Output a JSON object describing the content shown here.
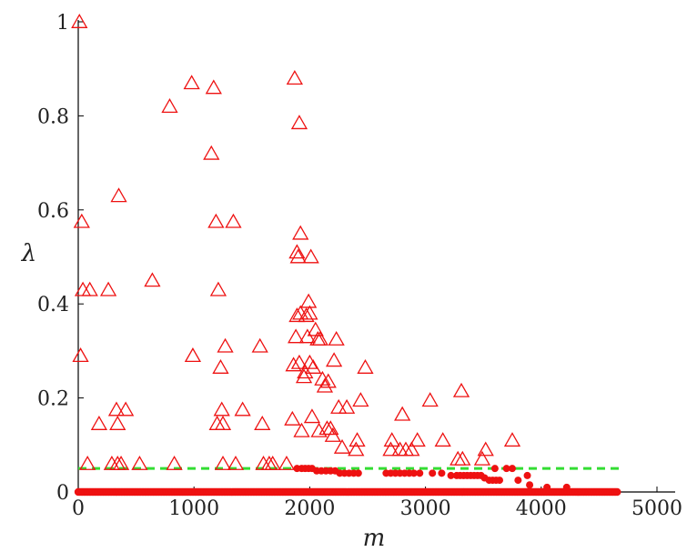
{
  "chart_data": {
    "type": "scatter",
    "title": "",
    "xlabel": "m",
    "ylabel": "λ",
    "xlim": [
      0,
      5000
    ],
    "ylim": [
      0,
      1
    ],
    "x_ticks": [
      0,
      1000,
      2000,
      3000,
      4000,
      5000
    ],
    "y_ticks": [
      0,
      0.2,
      0.4,
      0.6,
      0.8,
      1
    ],
    "x_tick_labels": [
      "0",
      "1000",
      "2000",
      "3000",
      "4000",
      "5000"
    ],
    "y_tick_labels": [
      "0",
      "0.2",
      "0.4",
      "0.6",
      "0.8",
      "1"
    ],
    "grid": false,
    "legend": "none",
    "threshold": {
      "y": 0.05,
      "x_range": [
        0,
        4700
      ],
      "color": "#33dd33",
      "style": "dashed"
    },
    "series": [
      {
        "marker": "triangle-open",
        "color": "#ee1111",
        "points": [
          [
            10,
            1.0
          ],
          [
            20,
            0.29
          ],
          [
            30,
            0.575
          ],
          [
            40,
            0.43
          ],
          [
            100,
            0.43
          ],
          [
            80,
            0.06
          ],
          [
            180,
            0.145
          ],
          [
            260,
            0.43
          ],
          [
            290,
            0.06
          ],
          [
            330,
            0.175
          ],
          [
            340,
            0.145
          ],
          [
            340,
            0.06
          ],
          [
            350,
            0.63
          ],
          [
            370,
            0.06
          ],
          [
            410,
            0.175
          ],
          [
            530,
            0.06
          ],
          [
            640,
            0.45
          ],
          [
            790,
            0.82
          ],
          [
            830,
            0.06
          ],
          [
            980,
            0.87
          ],
          [
            990,
            0.29
          ],
          [
            1150,
            0.72
          ],
          [
            1170,
            0.86
          ],
          [
            1190,
            0.575
          ],
          [
            1200,
            0.145
          ],
          [
            1210,
            0.43
          ],
          [
            1230,
            0.265
          ],
          [
            1240,
            0.175
          ],
          [
            1250,
            0.145
          ],
          [
            1250,
            0.06
          ],
          [
            1270,
            0.31
          ],
          [
            1340,
            0.575
          ],
          [
            1360,
            0.06
          ],
          [
            1420,
            0.175
          ],
          [
            1570,
            0.31
          ],
          [
            1590,
            0.145
          ],
          [
            1600,
            0.06
          ],
          [
            1650,
            0.06
          ],
          [
            1680,
            0.06
          ],
          [
            1800,
            0.06
          ],
          [
            1850,
            0.155
          ],
          [
            1860,
            0.27
          ],
          [
            1870,
            0.88
          ],
          [
            1880,
            0.33
          ],
          [
            1890,
            0.51
          ],
          [
            1890,
            0.375
          ],
          [
            1900,
            0.5
          ],
          [
            1910,
            0.785
          ],
          [
            1910,
            0.275
          ],
          [
            1920,
            0.55
          ],
          [
            1920,
            0.38
          ],
          [
            1930,
            0.13
          ],
          [
            1950,
            0.245
          ],
          [
            1960,
            0.255
          ],
          [
            1970,
            0.375
          ],
          [
            1980,
            0.33
          ],
          [
            1990,
            0.405
          ],
          [
            2000,
            0.275
          ],
          [
            2000,
            0.38
          ],
          [
            2010,
            0.5
          ],
          [
            2020,
            0.16
          ],
          [
            2030,
            0.265
          ],
          [
            2050,
            0.345
          ],
          [
            2070,
            0.325
          ],
          [
            2080,
            0.13
          ],
          [
            2090,
            0.325
          ],
          [
            2110,
            0.24
          ],
          [
            2130,
            0.225
          ],
          [
            2150,
            0.135
          ],
          [
            2160,
            0.235
          ],
          [
            2180,
            0.135
          ],
          [
            2200,
            0.12
          ],
          [
            2210,
            0.28
          ],
          [
            2230,
            0.325
          ],
          [
            2250,
            0.18
          ],
          [
            2280,
            0.095
          ],
          [
            2320,
            0.18
          ],
          [
            2400,
            0.09
          ],
          [
            2410,
            0.11
          ],
          [
            2440,
            0.195
          ],
          [
            2480,
            0.265
          ],
          [
            2700,
            0.09
          ],
          [
            2710,
            0.11
          ],
          [
            2780,
            0.09
          ],
          [
            2800,
            0.165
          ],
          [
            2830,
            0.09
          ],
          [
            2880,
            0.09
          ],
          [
            2930,
            0.11
          ],
          [
            3040,
            0.195
          ],
          [
            3150,
            0.11
          ],
          [
            3280,
            0.07
          ],
          [
            3310,
            0.215
          ],
          [
            3320,
            0.07
          ],
          [
            3490,
            0.07
          ],
          [
            3520,
            0.09
          ],
          [
            3750,
            0.11
          ]
        ]
      },
      {
        "marker": "dot-filled",
        "color": "#ee1111",
        "points": [
          [
            1890,
            0.05
          ],
          [
            1930,
            0.05
          ],
          [
            1960,
            0.05
          ],
          [
            1990,
            0.05
          ],
          [
            2020,
            0.05
          ],
          [
            2060,
            0.045
          ],
          [
            2100,
            0.045
          ],
          [
            2140,
            0.045
          ],
          [
            2180,
            0.045
          ],
          [
            2220,
            0.045
          ],
          [
            2260,
            0.04
          ],
          [
            2300,
            0.04
          ],
          [
            2340,
            0.04
          ],
          [
            2380,
            0.04
          ],
          [
            2420,
            0.04
          ],
          [
            2660,
            0.04
          ],
          [
            2700,
            0.04
          ],
          [
            2740,
            0.04
          ],
          [
            2780,
            0.04
          ],
          [
            2820,
            0.04
          ],
          [
            2860,
            0.04
          ],
          [
            2900,
            0.04
          ],
          [
            2950,
            0.04
          ],
          [
            3060,
            0.04
          ],
          [
            3140,
            0.04
          ],
          [
            3220,
            0.035
          ],
          [
            3270,
            0.035
          ],
          [
            3300,
            0.035
          ],
          [
            3330,
            0.035
          ],
          [
            3360,
            0.035
          ],
          [
            3390,
            0.035
          ],
          [
            3420,
            0.035
          ],
          [
            3450,
            0.035
          ],
          [
            3480,
            0.035
          ],
          [
            3510,
            0.03
          ],
          [
            3550,
            0.025
          ],
          [
            3580,
            0.025
          ],
          [
            3610,
            0.025
          ],
          [
            3640,
            0.025
          ],
          [
            3700,
            0.05
          ],
          [
            3750,
            0.05
          ],
          [
            3800,
            0.025
          ],
          [
            3880,
            0.035
          ],
          [
            3900,
            0.015
          ],
          [
            4050,
            0.01
          ],
          [
            4220,
            0.01
          ],
          [
            3600,
            0.05
          ]
        ]
      }
    ],
    "baseline_dense": {
      "y": 0,
      "x_range": [
        0,
        4660
      ],
      "marker": "dot-filled",
      "color": "#ee1111"
    }
  }
}
